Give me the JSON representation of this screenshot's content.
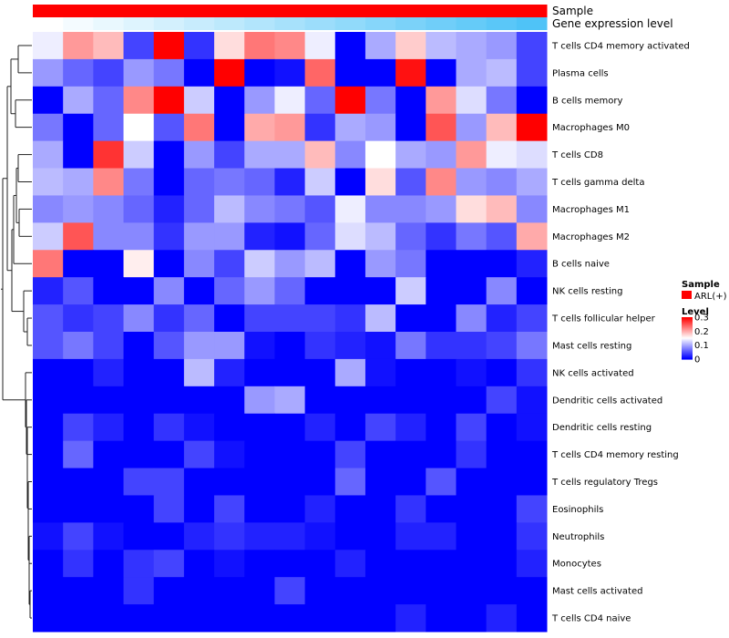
{
  "chart_data": {
    "type": "heatmap",
    "title": "",
    "annotation_rows": [
      {
        "name": "Sample",
        "label": "Sample",
        "kind": "constant",
        "color": "#ff0000"
      },
      {
        "name": "Gene expression level",
        "label": "Gene expression level",
        "kind": "gradient",
        "from": "#ffffff",
        "to": "#4fc3f7"
      }
    ],
    "rows": [
      "T cells CD4 memory activated",
      "Plasma cells",
      "B cells memory",
      "Macrophages M0",
      "T cells CD8",
      "T cells gamma delta",
      "Macrophages M1",
      "Macrophages M2",
      "B cells naive",
      "NK cells resting",
      "T cells follicular helper",
      "Mast cells resting",
      "NK cells activated",
      "Dendritic cells activated",
      "Dendritic cells resting",
      "T cells CD4 memory resting",
      "T cells regulatory  Tregs",
      "Eosinophils",
      "Neutrophils",
      "Monocytes",
      "Mast cells activated",
      "T cells CD4 naive"
    ],
    "n_columns": 17,
    "color_scale": {
      "min": 0,
      "mid": 0.15,
      "max": 0.3,
      "low": "#0000ff",
      "midcolor": "#ffffff",
      "high": "#ff0000"
    },
    "values": [
      [
        0.14,
        0.21,
        0.19,
        0.04,
        0.3,
        0.03,
        0.17,
        0.23,
        0.22,
        0.14,
        0.0,
        0.1,
        0.18,
        0.11,
        0.1,
        0.09,
        0.04
      ],
      [
        0.09,
        0.06,
        0.04,
        0.09,
        0.07,
        0.0,
        0.3,
        0.0,
        0.01,
        0.24,
        0.0,
        0.0,
        0.29,
        0.0,
        0.1,
        0.11,
        0.04
      ],
      [
        0.0,
        0.1,
        0.06,
        0.22,
        0.3,
        0.12,
        0.0,
        0.09,
        0.14,
        0.06,
        0.3,
        0.07,
        0.0,
        0.21,
        0.13,
        0.07,
        0.0
      ],
      [
        0.07,
        0.0,
        0.06,
        0.15,
        0.05,
        0.23,
        0.0,
        0.2,
        0.21,
        0.03,
        0.1,
        0.09,
        0.0,
        0.25,
        0.09,
        0.19,
        0.3
      ],
      [
        0.1,
        0.0,
        0.27,
        0.12,
        0.0,
        0.09,
        0.04,
        0.1,
        0.1,
        0.19,
        0.08,
        0.15,
        0.1,
        0.09,
        0.21,
        0.14,
        0.13
      ],
      [
        0.11,
        0.1,
        0.22,
        0.07,
        0.0,
        0.06,
        0.07,
        0.06,
        0.02,
        0.12,
        0.0,
        0.17,
        0.05,
        0.22,
        0.09,
        0.08,
        0.1
      ],
      [
        0.08,
        0.09,
        0.08,
        0.06,
        0.02,
        0.06,
        0.11,
        0.08,
        0.07,
        0.05,
        0.14,
        0.08,
        0.08,
        0.09,
        0.17,
        0.19,
        0.08
      ],
      [
        0.12,
        0.25,
        0.08,
        0.08,
        0.03,
        0.09,
        0.09,
        0.02,
        0.01,
        0.06,
        0.13,
        0.11,
        0.06,
        0.03,
        0.07,
        0.05,
        0.2
      ],
      [
        0.23,
        0.0,
        0.0,
        0.16,
        0.0,
        0.08,
        0.04,
        0.12,
        0.09,
        0.11,
        0.0,
        0.09,
        0.07,
        0.0,
        0.0,
        0.0,
        0.02
      ],
      [
        0.02,
        0.05,
        0.0,
        0.0,
        0.08,
        0.0,
        0.06,
        0.09,
        0.06,
        0.0,
        0.0,
        0.0,
        0.12,
        0.0,
        0.0,
        0.08,
        0.0
      ],
      [
        0.05,
        0.03,
        0.04,
        0.08,
        0.03,
        0.06,
        0.0,
        0.04,
        0.04,
        0.04,
        0.03,
        0.11,
        0.0,
        0.0,
        0.08,
        0.02,
        0.04
      ],
      [
        0.05,
        0.07,
        0.04,
        0.0,
        0.05,
        0.09,
        0.09,
        0.01,
        0.0,
        0.03,
        0.02,
        0.01,
        0.07,
        0.03,
        0.03,
        0.04,
        0.07
      ],
      [
        0.0,
        0.0,
        0.02,
        0.0,
        0.0,
        0.11,
        0.02,
        0.0,
        0.0,
        0.0,
        0.1,
        0.01,
        0.0,
        0.0,
        0.01,
        0.0,
        0.03
      ],
      [
        0.0,
        0.0,
        0.0,
        0.0,
        0.0,
        0.0,
        0.0,
        0.09,
        0.1,
        0.0,
        0.0,
        0.0,
        0.0,
        0.0,
        0.0,
        0.04,
        0.01
      ],
      [
        0.0,
        0.04,
        0.02,
        0.0,
        0.03,
        0.01,
        0.0,
        0.0,
        0.0,
        0.02,
        0.0,
        0.04,
        0.02,
        0.0,
        0.04,
        0.0,
        0.01
      ],
      [
        0.0,
        0.06,
        0.0,
        0.0,
        0.0,
        0.04,
        0.01,
        0.0,
        0.0,
        0.0,
        0.04,
        0.0,
        0.0,
        0.0,
        0.03,
        0.0,
        0.0
      ],
      [
        0.0,
        0.0,
        0.0,
        0.04,
        0.04,
        0.0,
        0.0,
        0.0,
        0.0,
        0.0,
        0.06,
        0.0,
        0.0,
        0.05,
        0.0,
        0.0,
        0.0
      ],
      [
        0.0,
        0.0,
        0.0,
        0.0,
        0.04,
        0.0,
        0.04,
        0.0,
        0.0,
        0.02,
        0.0,
        0.0,
        0.03,
        0.0,
        0.0,
        0.0,
        0.04
      ],
      [
        0.01,
        0.04,
        0.01,
        0.0,
        0.0,
        0.02,
        0.03,
        0.02,
        0.02,
        0.01,
        0.0,
        0.0,
        0.02,
        0.02,
        0.0,
        0.0,
        0.03
      ],
      [
        0.0,
        0.03,
        0.0,
        0.03,
        0.04,
        0.0,
        0.01,
        0.0,
        0.0,
        0.0,
        0.02,
        0.0,
        0.0,
        0.0,
        0.0,
        0.0,
        0.02
      ],
      [
        0.0,
        0.0,
        0.0,
        0.03,
        0.0,
        0.0,
        0.0,
        0.0,
        0.04,
        0.0,
        0.0,
        0.0,
        0.0,
        0.0,
        0.0,
        0.0,
        0.0
      ],
      [
        0.0,
        0.0,
        0.0,
        0.0,
        0.0,
        0.0,
        0.0,
        0.0,
        0.0,
        0.0,
        0.0,
        0.0,
        0.02,
        0.0,
        0.0,
        0.02,
        0.0
      ]
    ],
    "legend": {
      "sample_title": "Sample",
      "sample_entry": "ARL(+)",
      "sample_color": "#ff0000",
      "level_title": "Level",
      "level_ticks": [
        "0.3",
        "0.2",
        "0.1",
        "0"
      ],
      "level_tick_values": [
        0.3,
        0.2,
        0.1,
        0
      ]
    },
    "dendrogram": {
      "type": "hierarchical",
      "position": "left",
      "clusters": [
        {
          "id": "A",
          "members": [
            "T cells CD4 memory activated",
            "Plasma cells"
          ]
        },
        {
          "id": "B",
          "members": [
            "B cells memory",
            "Macrophages M0"
          ]
        },
        {
          "id": "C",
          "members": [
            "T cells CD8",
            "T cells gamma delta"
          ]
        },
        {
          "id": "D",
          "members": [
            "Macrophages M1",
            "Macrophages M2"
          ]
        },
        {
          "id": "E",
          "members": [
            "NK cells resting",
            "T cells follicular helper",
            "Mast cells resting"
          ]
        },
        {
          "id": "F",
          "members": [
            "NK cells activated",
            "Dendritic cells activated",
            "Dendritic cells resting",
            "T cells CD4 memory resting",
            "T cells regulatory  Tregs",
            "Eosinophils",
            "Neutrophils",
            "Monocytes",
            "Mast cells activated",
            "T cells CD4 naive"
          ]
        }
      ]
    }
  }
}
